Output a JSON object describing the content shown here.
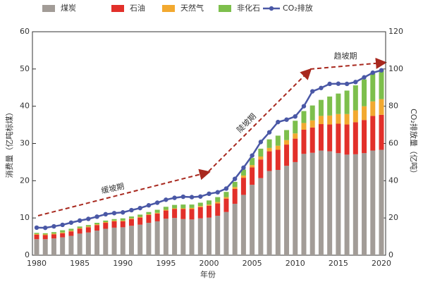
{
  "chart_data": {
    "type": "bar",
    "x": [
      1980,
      1981,
      1982,
      1983,
      1984,
      1985,
      1986,
      1987,
      1988,
      1989,
      1990,
      1991,
      1992,
      1993,
      1994,
      1995,
      1996,
      1997,
      1998,
      1999,
      2000,
      2001,
      2002,
      2003,
      2004,
      2005,
      2006,
      2007,
      2008,
      2009,
      2010,
      2011,
      2012,
      2013,
      2014,
      2015,
      2016,
      2017,
      2018,
      2019,
      2020
    ],
    "series": [
      {
        "name": "煤炭",
        "color": "#a29c97",
        "values": [
          4.3,
          4.3,
          4.5,
          4.8,
          5.2,
          5.8,
          6.1,
          6.6,
          7.1,
          7.4,
          7.5,
          7.9,
          8.2,
          8.7,
          9.1,
          9.8,
          10.0,
          9.7,
          9.6,
          9.9,
          10.1,
          10.6,
          11.6,
          13.8,
          16.2,
          18.9,
          20.7,
          22.6,
          22.9,
          24.0,
          25.0,
          27.2,
          27.5,
          28.1,
          27.9,
          27.4,
          27.0,
          27.1,
          27.4,
          28.1,
          28.3
        ]
      },
      {
        "name": "石油",
        "color": "#e2302a",
        "values": [
          1.2,
          1.1,
          1.1,
          1.1,
          1.2,
          1.3,
          1.4,
          1.5,
          1.6,
          1.7,
          1.6,
          1.8,
          1.9,
          2.1,
          2.1,
          2.2,
          2.4,
          2.7,
          2.8,
          3.0,
          3.2,
          3.3,
          3.6,
          4.0,
          4.6,
          4.7,
          5.0,
          5.3,
          5.4,
          5.7,
          6.3,
          6.5,
          6.8,
          7.1,
          7.2,
          7.9,
          8.1,
          8.6,
          8.9,
          9.3,
          9.4
        ]
      },
      {
        "name": "天然气",
        "color": "#f2a930",
        "values": [
          0.2,
          0.2,
          0.2,
          0.2,
          0.2,
          0.2,
          0.2,
          0.2,
          0.2,
          0.2,
          0.2,
          0.2,
          0.2,
          0.2,
          0.2,
          0.2,
          0.2,
          0.2,
          0.3,
          0.3,
          0.3,
          0.4,
          0.4,
          0.5,
          0.6,
          0.6,
          0.8,
          0.9,
          1.1,
          1.2,
          1.4,
          1.8,
          1.9,
          2.2,
          2.4,
          2.6,
          2.8,
          3.2,
          3.7,
          3.9,
          4.2
        ]
      },
      {
        "name": "非化石",
        "color": "#7dbf4c",
        "values": [
          0.3,
          0.3,
          0.4,
          0.6,
          0.5,
          0.4,
          0.4,
          0.4,
          0.4,
          0.4,
          0.6,
          0.5,
          0.6,
          0.6,
          0.8,
          0.8,
          0.9,
          1.0,
          0.9,
          0.9,
          1.1,
          1.3,
          1.4,
          1.4,
          1.6,
          1.9,
          2.1,
          2.3,
          2.7,
          2.7,
          3.4,
          3.2,
          4.0,
          4.3,
          5.1,
          5.5,
          6.3,
          6.7,
          7.2,
          7.5,
          7.9
        ]
      },
      {
        "name": "CO₂排放",
        "type": "line",
        "axis": "y2",
        "color": "#4a58a6",
        "values": [
          14.8,
          14.7,
          15.5,
          16.3,
          17.5,
          18.6,
          19.5,
          20.7,
          22.0,
          22.6,
          23.0,
          24.2,
          25.3,
          26.8,
          28.2,
          29.8,
          30.8,
          31.4,
          31.2,
          31.5,
          33.0,
          33.8,
          35.8,
          41.0,
          47.0,
          53.5,
          60.8,
          66.0,
          71.5,
          72.8,
          74.5,
          80.0,
          88.0,
          89.8,
          92.0,
          92.1,
          92.0,
          93.0,
          95.5,
          98.0,
          99.3
        ]
      }
    ],
    "xlim": [
      1980,
      2020
    ],
    "xticks": [
      1980,
      1985,
      1990,
      1995,
      2000,
      2005,
      2010,
      2015,
      2020
    ],
    "ylim": [
      0,
      60
    ],
    "yticks": [
      0,
      10,
      20,
      30,
      40,
      50,
      60
    ],
    "y2lim": [
      0,
      120
    ],
    "y2ticks": [
      0,
      20,
      40,
      60,
      80,
      100,
      120
    ],
    "x_label": "年份",
    "y_label": "消费量（亿吨标煤）",
    "y2_label": "CO₂排放量（亿吨）",
    "annotations": [
      "缓坡期",
      "陡坡期",
      "趋坡期"
    ],
    "grid": false,
    "legend": "top"
  }
}
